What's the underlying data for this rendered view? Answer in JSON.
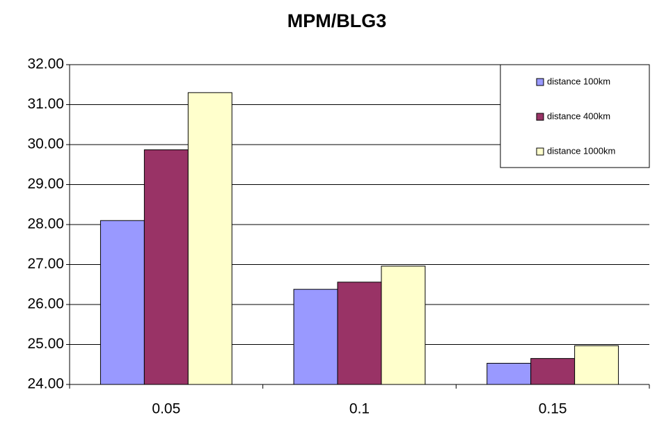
{
  "chart_data": {
    "type": "bar",
    "title": "MPM/BLG3",
    "categories": [
      "0.05",
      "0.1",
      "0.15"
    ],
    "series": [
      {
        "name": "distance 100km",
        "color": "#9999ff",
        "values": [
          28.1,
          26.38,
          24.53
        ]
      },
      {
        "name": "distance 400km",
        "color": "#993366",
        "values": [
          29.87,
          26.56,
          24.65
        ]
      },
      {
        "name": "distance 1000km",
        "color": "#ffffcc",
        "values": [
          31.3,
          26.96,
          24.97
        ]
      }
    ],
    "ylim": [
      24,
      32
    ],
    "yticks": [
      {
        "value": 24,
        "label": "24.00"
      },
      {
        "value": 25,
        "label": "25.00"
      },
      {
        "value": 26,
        "label": "26.00"
      },
      {
        "value": 27,
        "label": "27.00"
      },
      {
        "value": 28,
        "label": "28.00"
      },
      {
        "value": 29,
        "label": "29.00"
      },
      {
        "value": 30,
        "label": "30.00"
      },
      {
        "value": 31,
        "label": "31.00"
      },
      {
        "value": 32,
        "label": "32.00"
      }
    ],
    "grid": true,
    "legend": "top-right"
  }
}
